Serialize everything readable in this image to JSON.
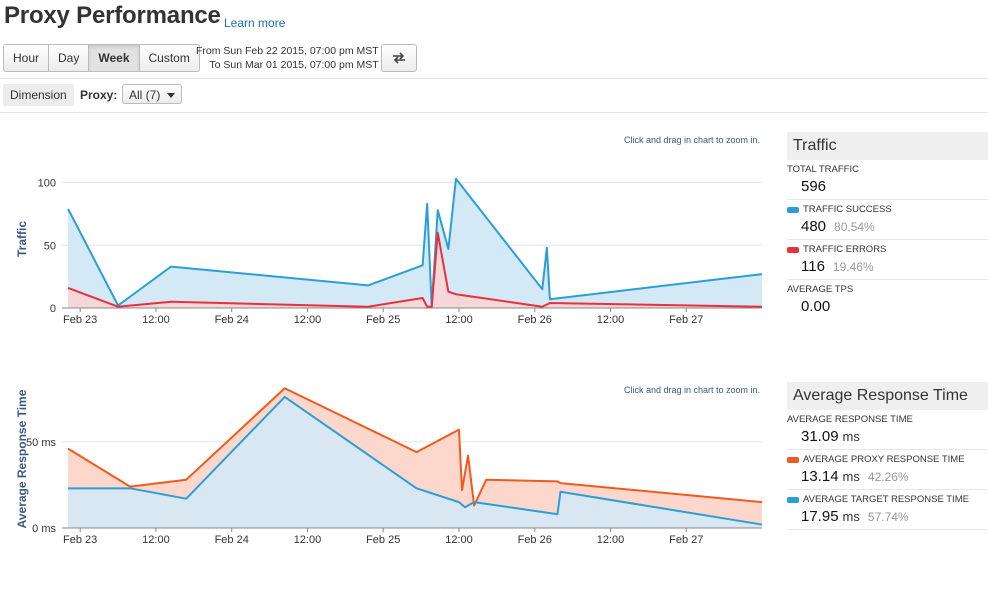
{
  "header": {
    "title": "Proxy Performance",
    "learn_more": "Learn more"
  },
  "time_buttons": [
    "Hour",
    "Day",
    "Week",
    "Custom"
  ],
  "active_button": "Week",
  "range": {
    "from": "From Sun Feb 22 2015, 07:00 pm MST",
    "to": "To Sun Mar 01 2015, 07:00 pm MST"
  },
  "filter": {
    "dimension_label": "Dimension",
    "proxy_label": "Proxy:",
    "proxy_value": "All (7)"
  },
  "zoom_hint": "Click and drag in chart to zoom in.",
  "colors": {
    "blue": "#2a9fd6",
    "blue_fill": "#d4e9f6",
    "red": "#e8303e",
    "red_fill": "#f8d4d6",
    "orange": "#f05a1e",
    "orange_fill": "#fdd7cb"
  },
  "traffic_panel": {
    "heading": "Traffic",
    "total_label": "TOTAL TRAFFIC",
    "total_value": "596",
    "success_label": "TRAFFIC SUCCESS",
    "success_value": "480",
    "success_pct": "80.54%",
    "errors_label": "TRAFFIC ERRORS",
    "errors_value": "116",
    "errors_pct": "19.46%",
    "tps_label": "AVERAGE TPS",
    "tps_value": "0.00"
  },
  "response_panel": {
    "heading": "Average Response Time",
    "avg_label": "AVERAGE RESPONSE TIME",
    "avg_value": "31.09",
    "avg_unit": "ms",
    "proxy_label": "AVERAGE PROXY RESPONSE TIME",
    "proxy_value": "13.14",
    "proxy_unit": "ms",
    "proxy_pct": "42.26%",
    "target_label": "AVERAGE TARGET RESPONSE TIME",
    "target_value": "17.95",
    "target_unit": "ms",
    "target_pct": "57.74%"
  },
  "chart_data": [
    {
      "type": "area",
      "ylabel": "Traffic",
      "ylim": [
        0,
        110
      ],
      "yticks": [
        "0",
        "50",
        "100"
      ],
      "ytick_values": [
        0,
        50,
        100
      ],
      "xlim": [
        0,
        5.1
      ],
      "xticks": [
        "Feb 23",
        "12:00",
        "Feb 24",
        "12:00",
        "Feb 25",
        "12:00",
        "Feb 26",
        "12:00",
        "Feb 27"
      ],
      "xtick_values": [
        0,
        0.5,
        1,
        1.5,
        2,
        2.5,
        3,
        3.5,
        4
      ],
      "series": [
        {
          "color": "#2a9fd6",
          "fill": "#d4e9f6",
          "x": [
            -0.08,
            0.25,
            0.6,
            1.9,
            2.26,
            2.29,
            2.32,
            2.36,
            2.43,
            2.48,
            3.05,
            3.08,
            3.1,
            4.5
          ],
          "y": [
            79,
            2,
            33,
            18,
            34,
            83,
            1,
            78,
            47,
            103,
            15,
            48,
            7,
            27
          ]
        },
        {
          "color": "#e8303e",
          "fill": "#f8d4d6",
          "x": [
            -0.08,
            0.25,
            0.6,
            1.9,
            2.26,
            2.29,
            2.32,
            2.36,
            2.43,
            2.48,
            3.05,
            3.1,
            4.5
          ],
          "y": [
            16,
            1,
            5,
            1,
            8,
            1,
            1,
            60,
            13,
            11,
            1,
            4,
            1
          ]
        }
      ]
    },
    {
      "type": "area",
      "ylabel": "Average Response Time",
      "ylim": [
        0,
        80
      ],
      "yticks": [
        "0 ms",
        "50 ms"
      ],
      "ytick_values": [
        0,
        50
      ],
      "xlim": [
        0,
        5.1
      ],
      "xticks": [
        "Feb 23",
        "12:00",
        "Feb 24",
        "12:00",
        "Feb 25",
        "12:00",
        "Feb 26",
        "12:00",
        "Feb 27"
      ],
      "xtick_values": [
        0,
        0.5,
        1,
        1.5,
        2,
        2.5,
        3,
        3.5,
        4
      ],
      "series": [
        {
          "color": "#f05a1e",
          "fill": "#fdd7cb",
          "x": [
            -0.08,
            0.33,
            0.7,
            1.35,
            2.22,
            2.5,
            2.52,
            2.56,
            2.6,
            2.68,
            3.15,
            3.17,
            4.5
          ],
          "y": [
            46,
            24,
            28,
            81,
            44,
            57,
            22,
            42,
            13,
            28,
            27,
            26,
            15
          ]
        },
        {
          "color": "#2a9fd6",
          "fill": "#d4e9f6",
          "x": [
            -0.08,
            0.33,
            0.7,
            1.35,
            2.22,
            2.5,
            2.54,
            2.6,
            2.68,
            3.15,
            3.17,
            4.5
          ],
          "y": [
            23,
            23,
            17,
            76,
            23,
            15,
            12,
            15,
            14,
            8,
            21,
            2
          ]
        }
      ]
    }
  ]
}
